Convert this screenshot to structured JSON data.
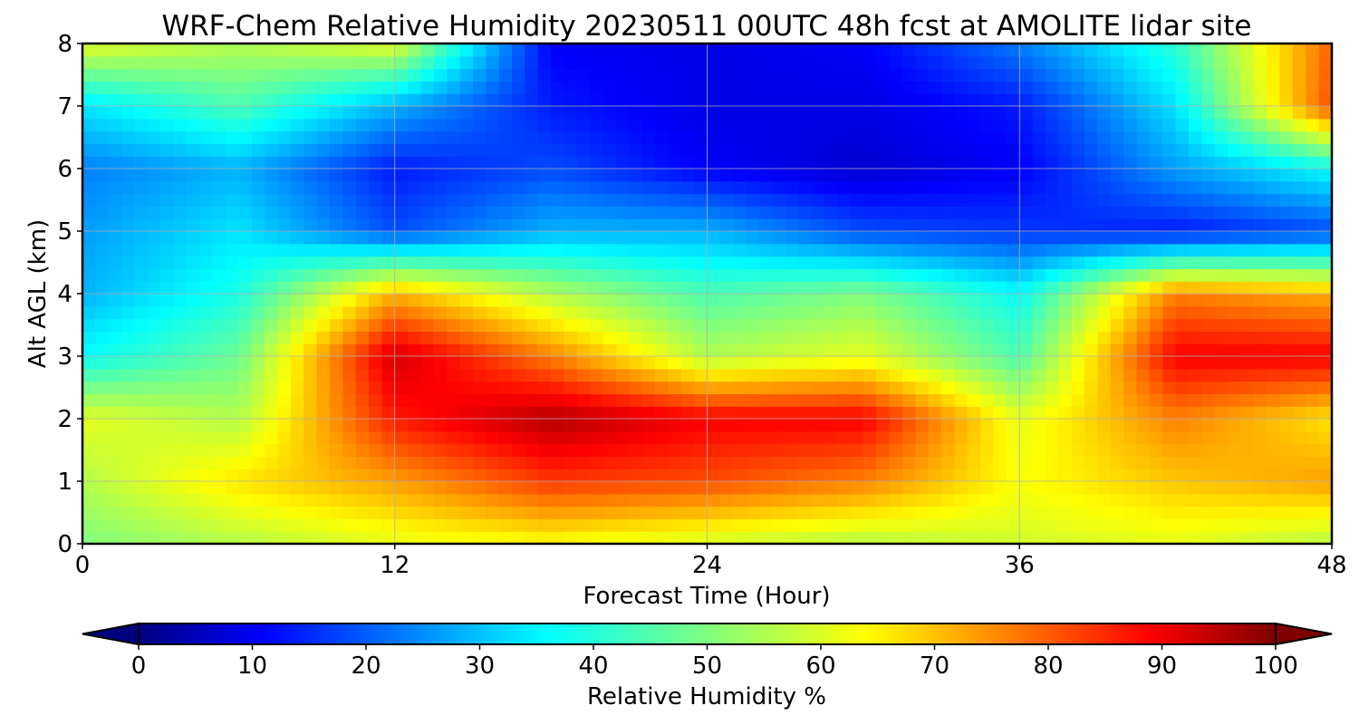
{
  "chart_data": {
    "type": "heatmap",
    "title": "WRF-Chem Relative Humidity 20230511 00UTC 48h fcst at AMOLITE lidar site",
    "xlabel": "Forecast Time (Hour)",
    "ylabel": "Alt AGL (km)",
    "xlim": [
      0,
      48
    ],
    "ylim": [
      0,
      8
    ],
    "xticks": [
      "0",
      "12",
      "24",
      "36",
      "48"
    ],
    "yticks": [
      "0",
      "1",
      "2",
      "3",
      "4",
      "5",
      "6",
      "7",
      "8"
    ],
    "grid": true,
    "colorbar": {
      "label": "Relative Humidity %",
      "ticks": [
        "0",
        "10",
        "20",
        "30",
        "40",
        "50",
        "60",
        "70",
        "80",
        "90",
        "100"
      ],
      "range": [
        0,
        100
      ],
      "extend": "both",
      "colormap": "jet"
    },
    "x": [
      0,
      6,
      12,
      18,
      24,
      30,
      36,
      42,
      48
    ],
    "y": [
      0,
      1,
      2,
      3,
      4,
      5,
      6,
      7,
      8
    ],
    "z": [
      [
        50,
        55,
        60,
        62,
        58,
        55,
        58,
        60,
        55
      ],
      [
        55,
        65,
        72,
        82,
        80,
        75,
        62,
        68,
        72
      ],
      [
        60,
        55,
        85,
        95,
        88,
        88,
        60,
        75,
        65
      ],
      [
        38,
        48,
        92,
        75,
        55,
        60,
        45,
        88,
        88
      ],
      [
        30,
        40,
        70,
        55,
        45,
        50,
        38,
        75,
        70
      ],
      [
        28,
        35,
        20,
        30,
        30,
        20,
        18,
        15,
        20
      ],
      [
        25,
        30,
        15,
        20,
        12,
        8,
        12,
        28,
        38
      ],
      [
        35,
        45,
        30,
        15,
        10,
        10,
        15,
        35,
        80
      ],
      [
        60,
        55,
        60,
        12,
        10,
        12,
        25,
        42,
        78
      ]
    ]
  }
}
